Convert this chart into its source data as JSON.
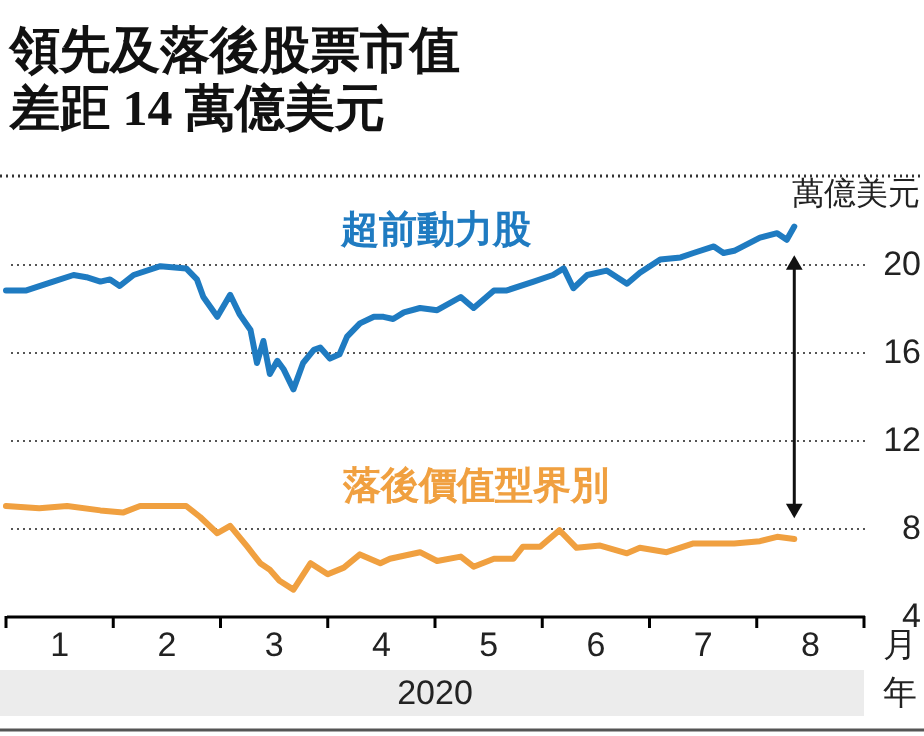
{
  "chart_data": {
    "type": "line",
    "title": "領先及落後股票市值",
    "subtitle": "差距 14 萬億美元",
    "ylabel": "萬億美元",
    "xlabel": "月",
    "annotations": [
      "2020",
      "年"
    ],
    "xlim": [
      0,
      8
    ],
    "xticks": [
      {
        "value": 0,
        "label": null
      },
      {
        "value": 0.5,
        "label": "1"
      },
      {
        "value": 1,
        "label": null
      },
      {
        "value": 1.5,
        "label": "2"
      },
      {
        "value": 2,
        "label": null
      },
      {
        "value": 2.5,
        "label": "3"
      },
      {
        "value": 3,
        "label": null
      },
      {
        "value": 3.5,
        "label": "4"
      },
      {
        "value": 4,
        "label": null
      },
      {
        "value": 4.5,
        "label": "5"
      },
      {
        "value": 5,
        "label": null
      },
      {
        "value": 5.5,
        "label": "6"
      },
      {
        "value": 6,
        "label": null
      },
      {
        "value": 6.5,
        "label": "7"
      },
      {
        "value": 7,
        "label": null
      },
      {
        "value": 7.5,
        "label": "8"
      },
      {
        "value": 8,
        "label": null
      }
    ],
    "ylim": [
      4,
      24
    ],
    "yticks": [
      4,
      8,
      12,
      16,
      20
    ],
    "grid": "y",
    "marker": "none",
    "line_style": "solid",
    "series": [
      {
        "name": "超前動力股",
        "color": "#1f7bc1",
        "x": [
          0.0,
          0.19,
          0.44,
          0.63,
          0.75,
          0.88,
          0.97,
          1.06,
          1.19,
          1.44,
          1.68,
          1.78,
          1.84,
          1.97,
          2.09,
          2.18,
          2.28,
          2.34,
          2.4,
          2.46,
          2.53,
          2.59,
          2.68,
          2.77,
          2.87,
          2.93,
          3.02,
          3.11,
          3.18,
          3.3,
          3.43,
          3.52,
          3.61,
          3.71,
          3.86,
          4.02,
          4.24,
          4.36,
          4.55,
          4.67,
          4.92,
          5.1,
          5.2,
          5.29,
          5.42,
          5.6,
          5.79,
          5.91,
          6.1,
          6.29,
          6.41,
          6.6,
          6.69,
          6.79,
          7.03,
          7.19,
          7.28,
          7.35
        ],
        "values": [
          18.8,
          18.8,
          19.2,
          19.5,
          19.4,
          19.2,
          19.3,
          19.0,
          19.5,
          19.9,
          19.8,
          19.3,
          18.5,
          17.6,
          18.6,
          17.7,
          17.0,
          15.5,
          16.5,
          15.0,
          15.6,
          15.2,
          14.3,
          15.5,
          16.1,
          16.2,
          15.7,
          15.9,
          16.7,
          17.3,
          17.6,
          17.6,
          17.5,
          17.8,
          18.0,
          17.9,
          18.5,
          18.0,
          18.8,
          18.8,
          19.2,
          19.5,
          19.8,
          18.9,
          19.5,
          19.7,
          19.1,
          19.6,
          20.2,
          20.3,
          20.5,
          20.8,
          20.5,
          20.6,
          21.2,
          21.4,
          21.1,
          21.7
        ]
      },
      {
        "name": "落後價值型界別",
        "color": "#f0a040",
        "x": [
          0.0,
          0.31,
          0.57,
          0.88,
          1.09,
          1.25,
          1.68,
          1.81,
          1.97,
          2.09,
          2.25,
          2.37,
          2.46,
          2.55,
          2.68,
          2.84,
          3.0,
          3.15,
          3.3,
          3.49,
          3.58,
          3.86,
          4.02,
          4.24,
          4.36,
          4.55,
          4.73,
          4.82,
          4.98,
          5.16,
          5.32,
          5.54,
          5.79,
          5.91,
          6.16,
          6.41,
          6.79,
          7.03,
          7.19,
          7.35
        ],
        "values": [
          9.0,
          8.9,
          9.0,
          8.8,
          8.7,
          9.0,
          9.0,
          8.5,
          7.76,
          8.1,
          7.15,
          6.4,
          6.1,
          5.6,
          5.2,
          6.4,
          5.9,
          6.2,
          6.8,
          6.4,
          6.6,
          6.9,
          6.5,
          6.7,
          6.24,
          6.6,
          6.6,
          7.15,
          7.15,
          7.9,
          7.1,
          7.2,
          6.85,
          7.1,
          6.9,
          7.3,
          7.3,
          7.4,
          7.6,
          7.5
        ]
      }
    ]
  }
}
